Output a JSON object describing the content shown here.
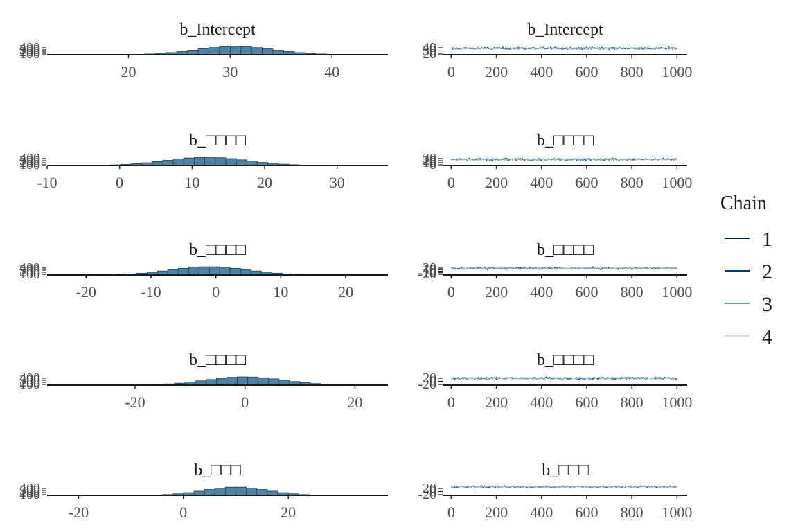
{
  "legend": {
    "title": "Chain",
    "items": [
      {
        "label": "1",
        "color": "#011f4b"
      },
      {
        "label": "2",
        "color": "#03396c"
      },
      {
        "label": "3",
        "color": "#6497b1"
      },
      {
        "label": "4",
        "color": "#c7dde9"
      }
    ]
  },
  "colors": {
    "hist_fill": "#4f83a3",
    "hist_edge": "#1c3d58",
    "axis": "#1a1a1a"
  },
  "chart_data": [
    {
      "type": "bar",
      "title": "b_Intercept",
      "xticks": [
        20,
        30,
        40
      ],
      "xlim": [
        12,
        45.5
      ],
      "mean": 30.5,
      "sd": 3.8,
      "bin_width": 1.05,
      "yticks": [
        100,
        200,
        300,
        400
      ],
      "ymax": 1000
    },
    {
      "type": "line",
      "title": "b_Intercept",
      "xticks": [
        0,
        200,
        400,
        600,
        800,
        1000
      ],
      "xlim": [
        -35,
        1045
      ],
      "n_iter": 1000,
      "center": 30.5,
      "spread": 3.8,
      "yticks": [
        20,
        30,
        40
      ],
      "ylim": [
        18,
        46
      ]
    },
    {
      "type": "bar",
      "title": "b_□□□□",
      "xticks": [
        -10,
        0,
        10,
        20,
        30
      ],
      "xlim": [
        -10,
        37
      ],
      "mean": 12,
      "sd": 5.5,
      "bin_width": 1.45,
      "yticks": [
        100,
        200,
        300,
        400
      ],
      "ymax": 1000
    },
    {
      "type": "line",
      "title": "b_□□□□",
      "xticks": [
        0,
        200,
        400,
        600,
        800,
        1000
      ],
      "xlim": [
        -35,
        1045
      ],
      "n_iter": 1000,
      "center": 12,
      "spread": 5.5,
      "yticks": [
        0,
        10,
        20,
        30
      ],
      "ylim": [
        -6,
        36
      ]
    },
    {
      "type": "bar",
      "title": "b_□□□□",
      "xticks": [
        -20,
        -10,
        0,
        10,
        20
      ],
      "xlim": [
        -26,
        26.5
      ],
      "mean": -1,
      "sd": 6,
      "bin_width": 1.6,
      "yticks": [
        100,
        200,
        300,
        400
      ],
      "ymax": 1000
    },
    {
      "type": "line",
      "title": "b_□□□□",
      "xticks": [
        0,
        200,
        400,
        600,
        800,
        1000
      ],
      "xlim": [
        -35,
        1045
      ],
      "n_iter": 1000,
      "center": -1,
      "spread": 6,
      "yticks": [
        -20,
        -10,
        0,
        10,
        20
      ],
      "ylim": [
        -25,
        25
      ]
    },
    {
      "type": "bar",
      "title": "b_□□□□",
      "xticks": [
        -20,
        0,
        20
      ],
      "xlim": [
        -36,
        26
      ],
      "mean": 0,
      "sd": 7,
      "bin_width": 1.9,
      "yticks": [
        100,
        200,
        300,
        400
      ],
      "ymax": 1000
    },
    {
      "type": "line",
      "title": "b_□□□□",
      "xticks": [
        0,
        200,
        400,
        600,
        800,
        1000
      ],
      "xlim": [
        -35,
        1045
      ],
      "n_iter": 1000,
      "center": 0,
      "spread": 7,
      "yticks": [
        -20,
        0,
        20
      ],
      "ylim": [
        -26,
        26
      ]
    },
    {
      "type": "bar",
      "title": "b_□□□",
      "xticks": [
        -20,
        0,
        20
      ],
      "xlim": [
        -26,
        39
      ],
      "mean": 10,
      "sd": 6,
      "bin_width": 2.0,
      "yticks": [
        100,
        200,
        300,
        400
      ],
      "ymax": 1000
    },
    {
      "type": "line",
      "title": "b_□□□",
      "xticks": [
        0,
        200,
        400,
        600,
        800,
        1000
      ],
      "xlim": [
        -35,
        1045
      ],
      "n_iter": 1000,
      "center": 10,
      "spread": 6,
      "yticks": [
        -20,
        0,
        20
      ],
      "ylim": [
        -24,
        28
      ]
    }
  ]
}
